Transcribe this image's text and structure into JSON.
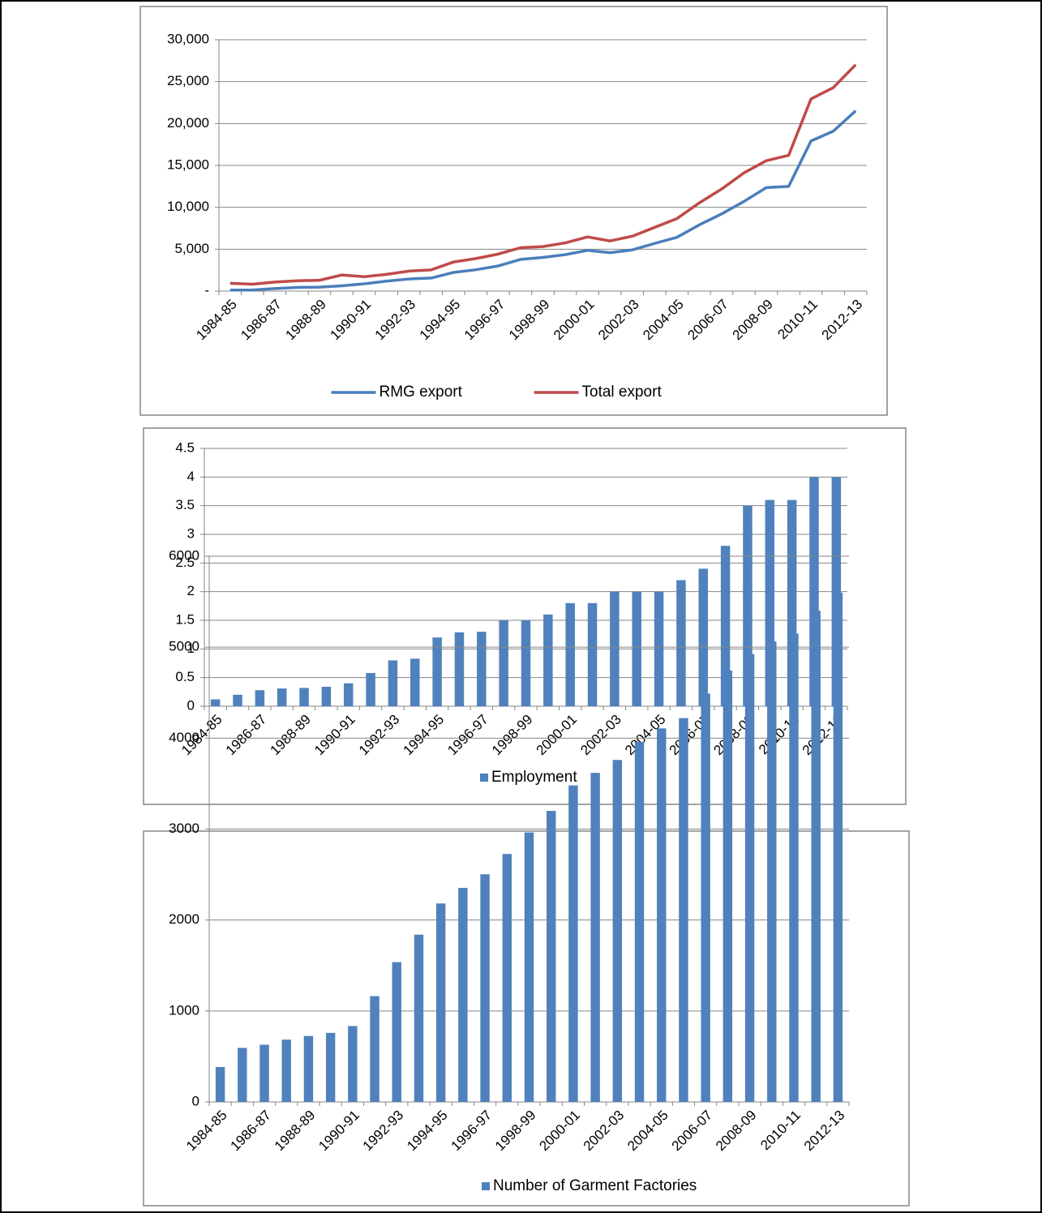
{
  "chart_data": [
    {
      "type": "line",
      "categories": [
        "1984-85",
        null,
        "1986-87",
        null,
        "1988-89",
        null,
        "1990-91",
        null,
        "1992-93",
        null,
        "1994-95",
        null,
        "1996-97",
        null,
        "1998-99",
        null,
        "2000-01",
        null,
        "2002-03",
        null,
        "2004-05",
        null,
        "2006-07",
        null,
        "2008-09",
        null,
        "2010-11",
        null,
        "2012-13"
      ],
      "series": [
        {
          "name": "RMG export",
          "color": "#4a7ebb",
          "values": [
            116,
            131,
            299,
            434,
            471,
            624,
            866,
            1182,
            1445,
            1556,
            2228,
            2547,
            3001,
            3781,
            4020,
            4349,
            4860,
            4583,
            4912,
            5686,
            6418,
            7901,
            9211,
            10700,
            12347,
            12497,
            17914,
            19089,
            21516
          ]
        },
        {
          "name": "Total export",
          "color": "#be4b48",
          "values": [
            934,
            819,
            1077,
            1231,
            1291,
            1924,
            1718,
            1994,
            2383,
            2534,
            3473,
            3882,
            4418,
            5172,
            5313,
            5752,
            6467,
            5986,
            6548,
            7603,
            8654,
            10526,
            12178,
            14111,
            15565,
            16205,
            22928,
            24288,
            27018
          ]
        }
      ],
      "ylim": [
        0,
        30000
      ],
      "yticks": [
        {
          "value": 0,
          "label": "-"
        },
        {
          "value": 5000,
          "label": "5,000"
        },
        {
          "value": 10000,
          "label": "10,000"
        },
        {
          "value": 15000,
          "label": "15,000"
        },
        {
          "value": 20000,
          "label": "20,000"
        },
        {
          "value": 25000,
          "label": "25,000"
        },
        {
          "value": 30000,
          "label": "30,000"
        }
      ],
      "grid": true,
      "legend": "bottom"
    },
    {
      "type": "bar",
      "categories": [
        "1984-85",
        null,
        "1986-87",
        null,
        "1988-89",
        null,
        "1990-91",
        null,
        "1992-93",
        null,
        "1994-95",
        null,
        "1996-97",
        null,
        "1998-99",
        null,
        "2000-01",
        null,
        "2002-03",
        null,
        "2004-05",
        null,
        "2006-07",
        null,
        "2008-09",
        null,
        "2010-11",
        null,
        "2012-13"
      ],
      "series": [
        {
          "name": "Employment",
          "color": "#4f81bd",
          "values": [
            0.12,
            0.2,
            0.28,
            0.31,
            0.32,
            0.34,
            0.4,
            0.58,
            0.8,
            0.83,
            1.2,
            1.29,
            1.3,
            1.5,
            1.5,
            1.6,
            1.8,
            1.8,
            2,
            2,
            2,
            2.2,
            2.4,
            2.8,
            3.5,
            3.6,
            3.6,
            4,
            4
          ]
        }
      ],
      "ylim": [
        0,
        4.5
      ],
      "yticks": [
        0,
        0.5,
        1,
        1.5,
        2,
        2.5,
        3,
        3.5,
        4,
        4.5
      ],
      "grid": true,
      "legend": "bottom"
    },
    {
      "type": "bar",
      "categories": [
        "1984-85",
        null,
        "1986-87",
        null,
        "1988-89",
        null,
        "1990-91",
        null,
        "1992-93",
        null,
        "1994-95",
        null,
        "1996-97",
        null,
        "1998-99",
        null,
        "2000-01",
        null,
        "2002-03",
        null,
        "2004-05",
        null,
        "2006-07",
        null,
        "2008-09",
        null,
        "2010-11",
        null,
        "2012-13"
      ],
      "series": [
        {
          "name": "Number of Garment Factories",
          "color": "#4f81bd",
          "values": [
            384,
            594,
            629,
            685,
            725,
            759,
            834,
            1163,
            1537,
            1839,
            2182,
            2353,
            2503,
            2726,
            2963,
            3200,
            3480,
            3618,
            3760,
            3957,
            4107,
            4220,
            4490,
            4743,
            4925,
            5063,
            5150,
            5400,
            5600
          ]
        }
      ],
      "ylim": [
        0,
        6000
      ],
      "yticks": [
        0,
        1000,
        2000,
        3000,
        4000,
        5000,
        6000
      ],
      "grid": true,
      "legend": "bottom"
    }
  ]
}
